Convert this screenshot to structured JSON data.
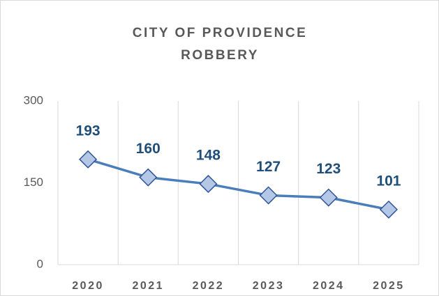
{
  "chart_data": {
    "type": "line",
    "title": "CITY OF PROVIDENCE ROBBERY",
    "categories": [
      "2020",
      "2021",
      "2022",
      "2023",
      "2024",
      "2025"
    ],
    "values": [
      193,
      160,
      148,
      127,
      123,
      101
    ],
    "color": "#4a7ebb",
    "ylim": [
      0,
      300
    ],
    "yticks": [
      0,
      150,
      300
    ],
    "grid": true
  }
}
